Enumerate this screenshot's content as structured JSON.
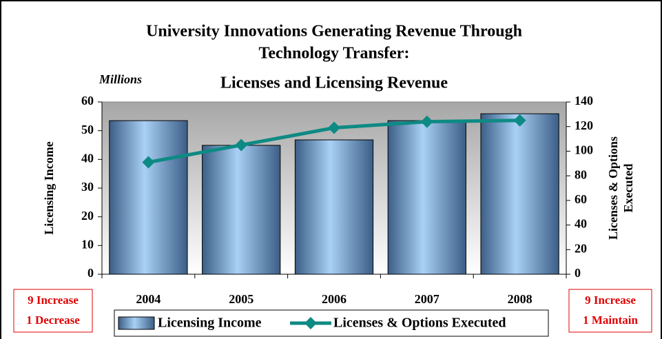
{
  "chart_data": {
    "type": "bar_line",
    "title": [
      "University Innovations Generating Revenue Through",
      "Technology Transfer:",
      "Licenses and Licensing Revenue"
    ],
    "units_label": "Millions",
    "ylabel": "Licensing Income",
    "y2label": [
      "Licenses & Options",
      "Executed"
    ],
    "categories": [
      "2004",
      "2005",
      "2006",
      "2007",
      "2008"
    ],
    "series": [
      {
        "name": "Licensing Income",
        "color": "#7fb2e5",
        "values": [
          53.5,
          44.9,
          46.8,
          53.5,
          55.9
        ]
      },
      {
        "name": "Licenses & Options Executed",
        "color": "#0e8a84",
        "axis": "y2",
        "values": [
          91,
          105,
          119,
          124,
          125
        ]
      }
    ],
    "ylim": [
      0,
      60
    ],
    "yticks": [
      0,
      10,
      20,
      30,
      40,
      50,
      60
    ],
    "y2lim": [
      0,
      140
    ],
    "y2ticks": [
      0,
      20,
      40,
      60,
      80,
      100,
      120,
      140
    ],
    "grid": false,
    "annotations": [
      [
        "9  Increase",
        "1 Decrease"
      ],
      [
        "9  Increase",
        "1 Maintain"
      ]
    ]
  }
}
